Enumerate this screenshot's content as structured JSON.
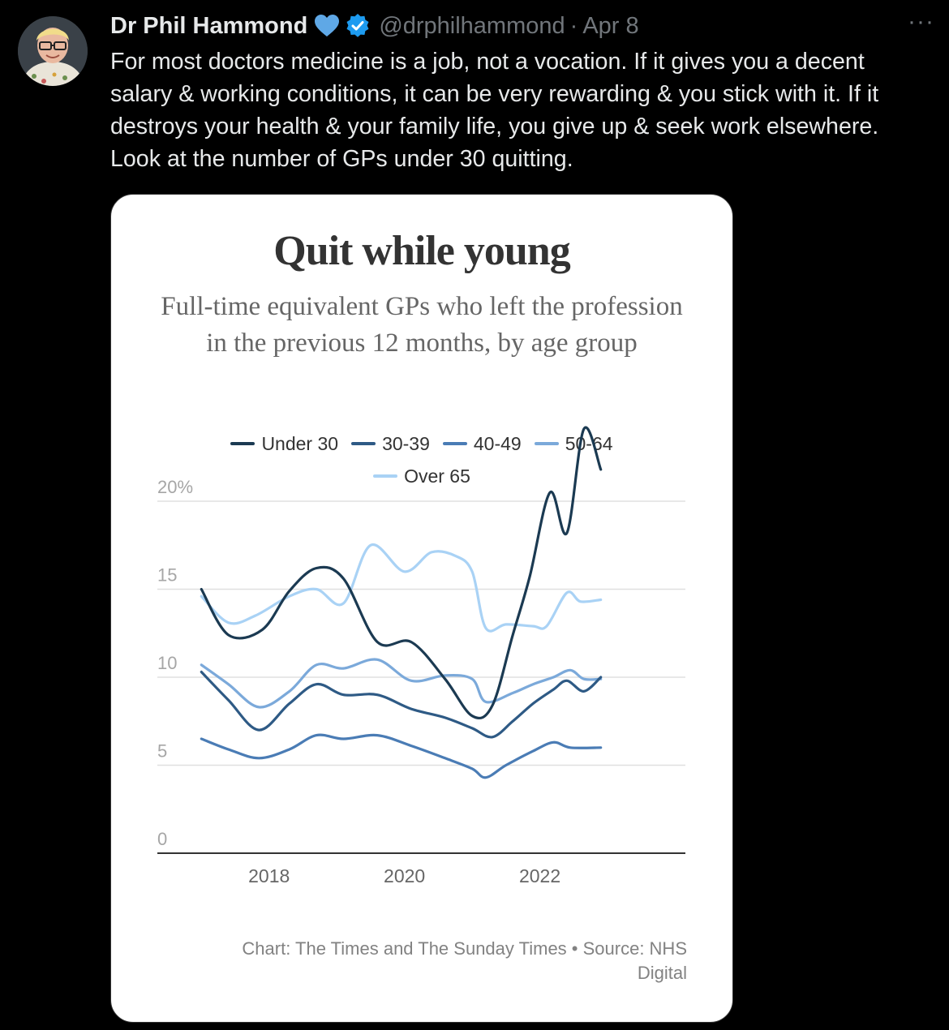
{
  "post": {
    "author_name": "Dr Phil Hammond",
    "handle": "@drphilhammond",
    "separator": "·",
    "date": "Apr 8",
    "more_label": "···",
    "text": "For most doctors medicine is a job, not a vocation. If it gives you a decent salary & working conditions, it can be very rewarding & you stick with it. If it destroys your health & your family life, you give up & seek work elsewhere. Look at the number of GPs under 30 quitting."
  },
  "icons": {
    "heart": "blue-heart-icon",
    "verified": "verified-badge-icon",
    "more": "more-options-icon"
  },
  "colors": {
    "background": "#000000",
    "text": "#e7e9ea",
    "muted": "#71767b",
    "verified": "#1d9bf0"
  },
  "chart_data": {
    "type": "line",
    "title": "Quit while young",
    "subtitle": "Full-time equivalent GPs who left the profession in the previous 12 months, by age group",
    "source": "Chart: The Times and The Sunday Times • Source: NHS Digital",
    "ylim": [
      0,
      20
    ],
    "xlim": [
      2016.35,
      2024.15
    ],
    "y_ticks": [
      {
        "value": 0,
        "label": "0"
      },
      {
        "value": 5,
        "label": "5"
      },
      {
        "value": 10,
        "label": "10"
      },
      {
        "value": 15,
        "label": "15"
      },
      {
        "value": 20,
        "label": "20%"
      }
    ],
    "x_ticks": [
      {
        "value": 2018,
        "label": "2018"
      },
      {
        "value": 2020,
        "label": "2020"
      },
      {
        "value": 2022,
        "label": "2022"
      }
    ],
    "grid": true,
    "legend_position": "top",
    "series": [
      {
        "name": "Under 30",
        "color": "#1b3a52",
        "points": [
          [
            2017.0,
            15.0
          ],
          [
            2017.4,
            12.4
          ],
          [
            2017.9,
            12.7
          ],
          [
            2018.3,
            14.9
          ],
          [
            2018.7,
            16.2
          ],
          [
            2019.1,
            15.6
          ],
          [
            2019.6,
            12.0
          ],
          [
            2020.1,
            12.0
          ],
          [
            2020.6,
            9.9
          ],
          [
            2021.0,
            7.8
          ],
          [
            2021.3,
            8.4
          ],
          [
            2021.6,
            12.4
          ],
          [
            2021.85,
            15.7
          ],
          [
            2022.15,
            20.5
          ],
          [
            2022.4,
            18.2
          ],
          [
            2022.65,
            24.1
          ],
          [
            2022.9,
            21.8
          ]
        ]
      },
      {
        "name": "30-39",
        "color": "#2e5a85",
        "points": [
          [
            2017.0,
            10.3
          ],
          [
            2017.4,
            8.7
          ],
          [
            2017.85,
            7.0
          ],
          [
            2018.3,
            8.5
          ],
          [
            2018.7,
            9.6
          ],
          [
            2019.1,
            9.0
          ],
          [
            2019.6,
            9.0
          ],
          [
            2020.1,
            8.2
          ],
          [
            2020.6,
            7.7
          ],
          [
            2021.0,
            7.1
          ],
          [
            2021.3,
            6.6
          ],
          [
            2021.6,
            7.5
          ],
          [
            2021.9,
            8.5
          ],
          [
            2022.2,
            9.3
          ],
          [
            2022.4,
            9.8
          ],
          [
            2022.65,
            9.2
          ],
          [
            2022.9,
            10.0
          ]
        ]
      },
      {
        "name": "40-49",
        "color": "#4a7cb5",
        "points": [
          [
            2017.0,
            6.5
          ],
          [
            2017.4,
            5.9
          ],
          [
            2017.85,
            5.4
          ],
          [
            2018.3,
            5.9
          ],
          [
            2018.7,
            6.7
          ],
          [
            2019.1,
            6.5
          ],
          [
            2019.6,
            6.7
          ],
          [
            2020.1,
            6.1
          ],
          [
            2020.6,
            5.4
          ],
          [
            2021.0,
            4.8
          ],
          [
            2021.2,
            4.3
          ],
          [
            2021.5,
            5.0
          ],
          [
            2021.9,
            5.8
          ],
          [
            2022.2,
            6.3
          ],
          [
            2022.45,
            6.0
          ],
          [
            2022.9,
            6.0
          ]
        ]
      },
      {
        "name": "50-64",
        "color": "#7ba9da",
        "points": [
          [
            2017.0,
            10.7
          ],
          [
            2017.4,
            9.6
          ],
          [
            2017.85,
            8.3
          ],
          [
            2018.3,
            9.2
          ],
          [
            2018.7,
            10.7
          ],
          [
            2019.1,
            10.5
          ],
          [
            2019.6,
            11.0
          ],
          [
            2020.1,
            9.8
          ],
          [
            2020.6,
            10.1
          ],
          [
            2021.0,
            9.9
          ],
          [
            2021.2,
            8.6
          ],
          [
            2021.6,
            9.1
          ],
          [
            2021.9,
            9.6
          ],
          [
            2022.2,
            10.0
          ],
          [
            2022.45,
            10.4
          ],
          [
            2022.65,
            9.9
          ],
          [
            2022.9,
            9.9
          ]
        ]
      },
      {
        "name": "Over 65",
        "color": "#a9d2f5",
        "points": [
          [
            2017.0,
            14.6
          ],
          [
            2017.4,
            13.1
          ],
          [
            2017.8,
            13.5
          ],
          [
            2018.3,
            14.6
          ],
          [
            2018.7,
            15.0
          ],
          [
            2019.1,
            14.2
          ],
          [
            2019.5,
            17.5
          ],
          [
            2020.0,
            16.0
          ],
          [
            2020.4,
            17.1
          ],
          [
            2020.75,
            16.9
          ],
          [
            2021.0,
            16.0
          ],
          [
            2021.2,
            12.8
          ],
          [
            2021.5,
            13.0
          ],
          [
            2021.9,
            12.9
          ],
          [
            2022.1,
            12.9
          ],
          [
            2022.4,
            14.8
          ],
          [
            2022.6,
            14.3
          ],
          [
            2022.9,
            14.4
          ]
        ]
      }
    ]
  }
}
